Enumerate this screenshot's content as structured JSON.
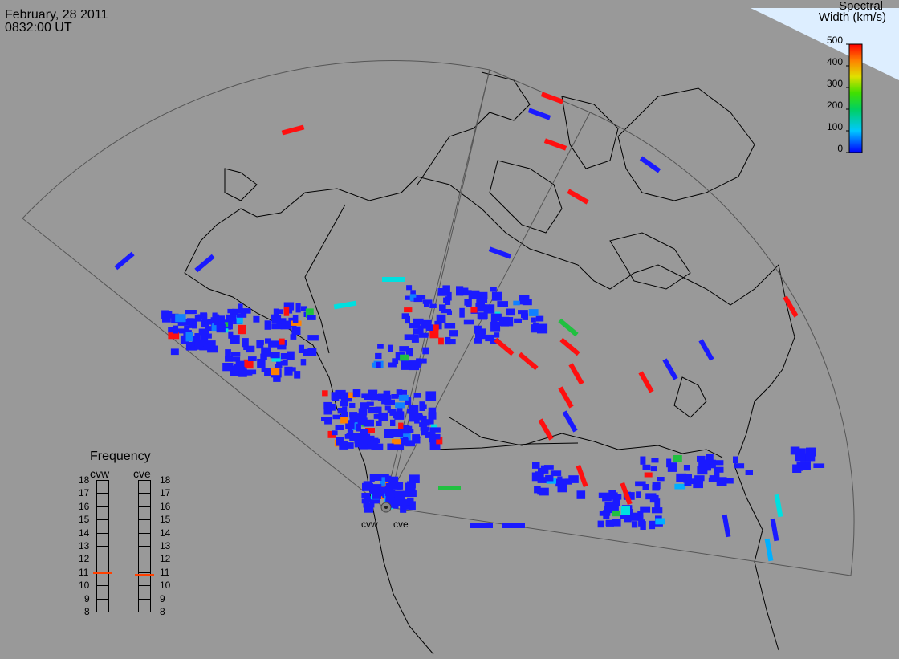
{
  "header": {
    "date": "February, 28 2011",
    "time": "0832:00 UT"
  },
  "colorbar": {
    "title_line1": "Spectral",
    "title_line2": "Width (km/s)",
    "ticks": [
      "500",
      "400",
      "300",
      "200",
      "100",
      "0"
    ]
  },
  "frequency": {
    "title": "Frequency",
    "radars": [
      {
        "name": "cvw",
        "value_mhz": 10.9
      },
      {
        "name": "cve",
        "value_mhz": 10.8
      }
    ],
    "scale_left": [
      "18",
      "17",
      "16",
      "15",
      "14",
      "13",
      "12",
      "11",
      "10",
      "9",
      "8"
    ],
    "scale_right": [
      "18",
      "17",
      "16",
      "15",
      "14",
      "13",
      "12",
      "11",
      "10",
      "9",
      "8"
    ]
  },
  "radars": {
    "west": "cvw",
    "east": "cve"
  },
  "colors": {
    "background": "#999999",
    "marker": "#ff4000"
  }
}
